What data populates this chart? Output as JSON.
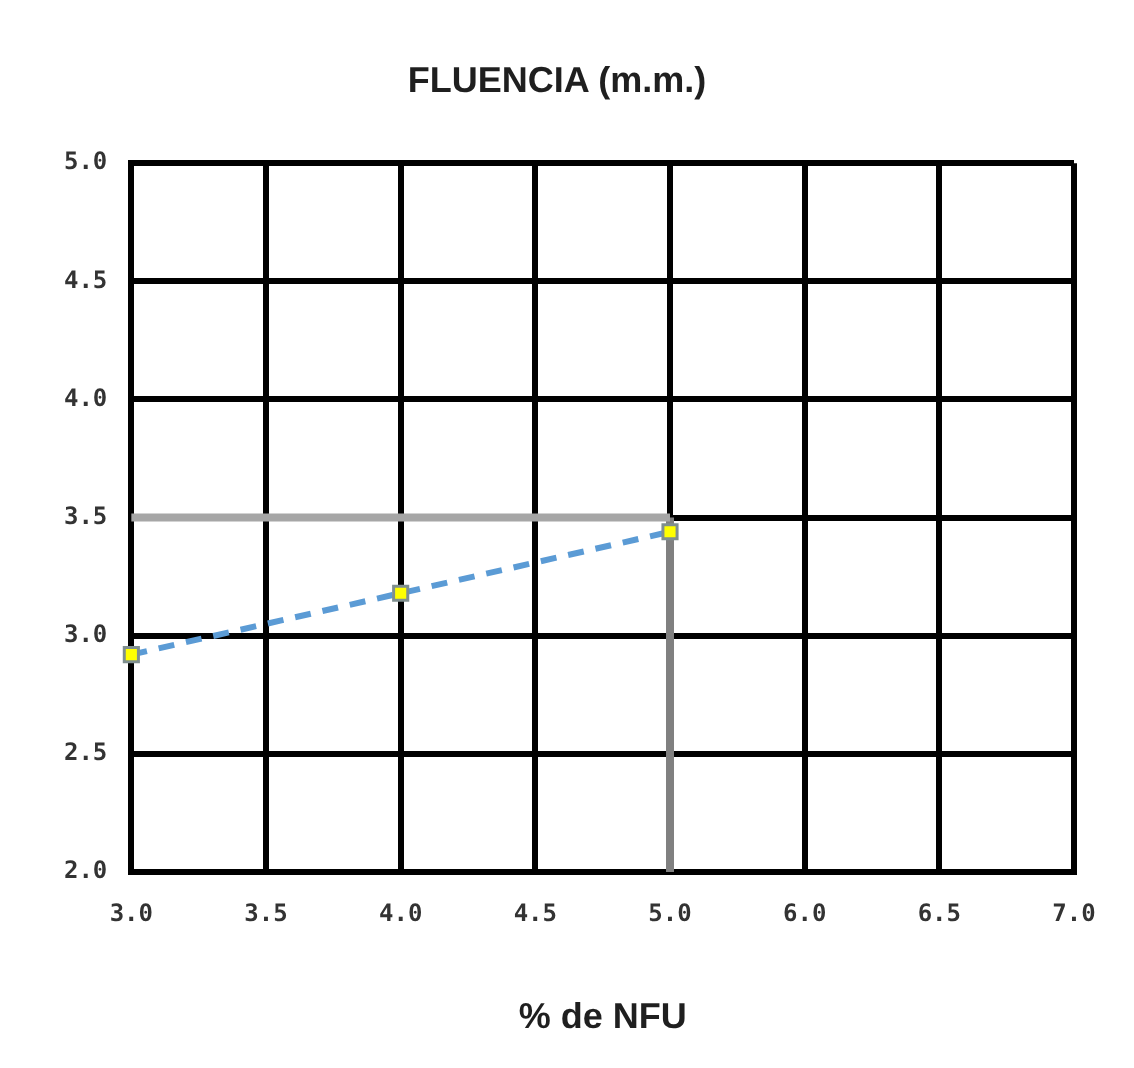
{
  "chart_data": {
    "type": "line",
    "title": "FLUENCIA (m.m.)",
    "xlabel": "% de NFU",
    "categories": [
      "3.0",
      "3.5",
      "4.0",
      "4.5",
      "5.0",
      "6.0",
      "6.5",
      "7.0"
    ],
    "series": [
      {
        "color": "#5b9bd5",
        "values": [
          2.92,
          null,
          3.18,
          null,
          3.44,
          null,
          null,
          null
        ]
      }
    ],
    "ylim": [
      2.0,
      5.0
    ],
    "yticks": [
      {
        "value": 2,
        "label": "2.0"
      },
      2.5,
      {
        "value": 3,
        "label": "3.0"
      },
      3.5,
      {
        "value": 4,
        "label": "4.0"
      },
      4.5,
      {
        "value": 5,
        "label": "5.0"
      }
    ],
    "grid": true,
    "legend": false,
    "marker": "square",
    "line_style": "dashed",
    "ref_lines": [
      {
        "axis": "x",
        "value": "5.0",
        "color": "#808080"
      },
      {
        "axis": "y",
        "value": 3.5,
        "color": "#a6a6a6"
      }
    ]
  }
}
